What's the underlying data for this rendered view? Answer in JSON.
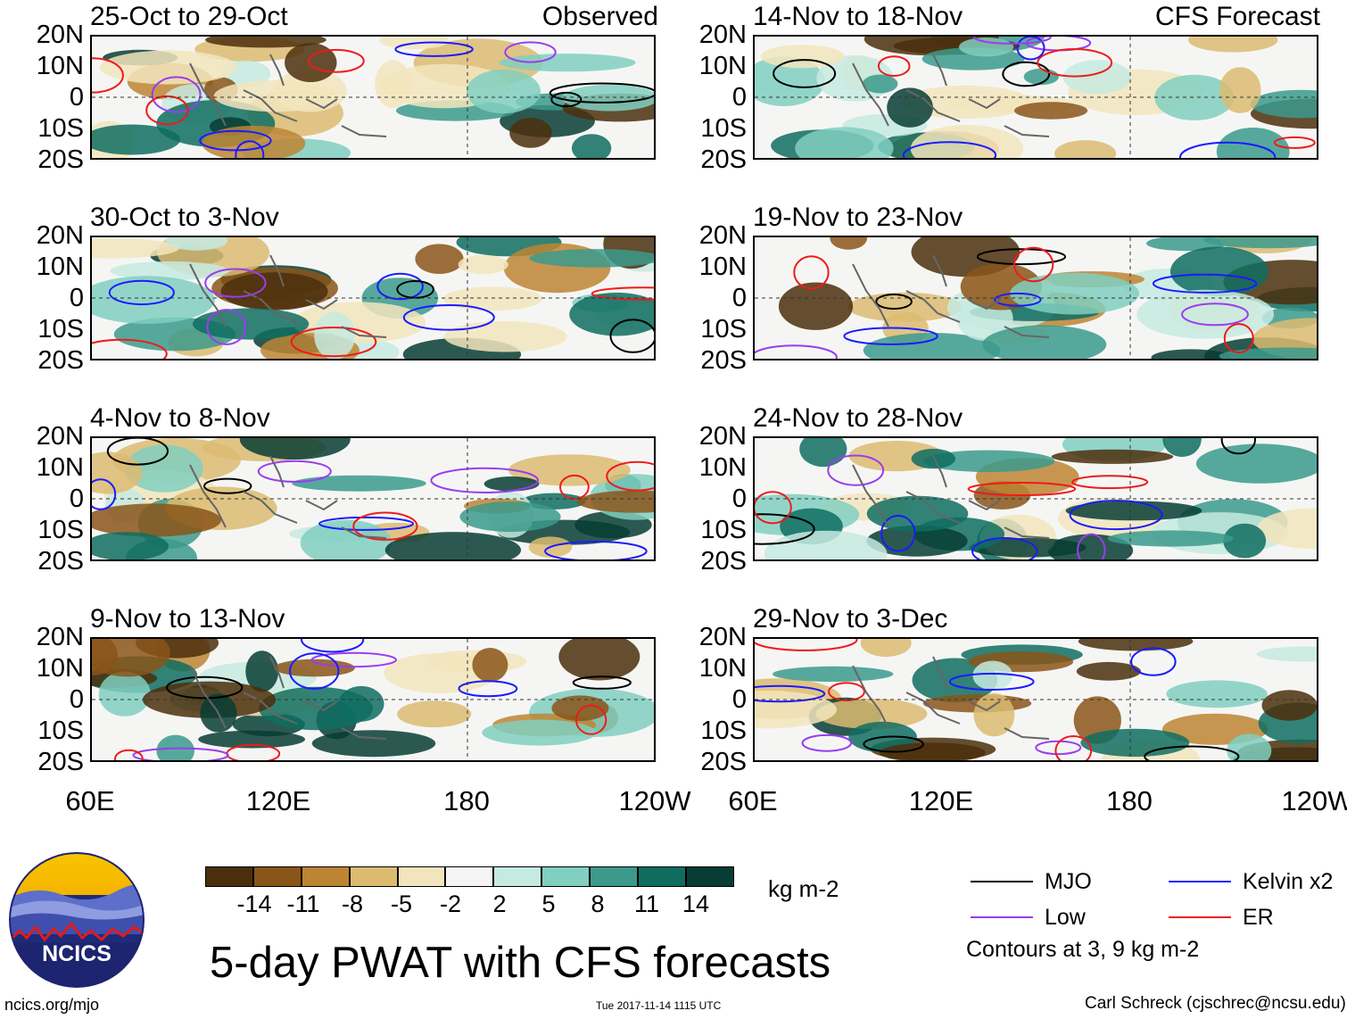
{
  "observed_label": "Observed",
  "forecast_label": "CFS Forecast",
  "observed_panels": [
    {
      "title": "25-Oct to 29-Oct"
    },
    {
      "title": "30-Oct to 3-Nov"
    },
    {
      "title": "4-Nov to 8-Nov"
    },
    {
      "title": "9-Nov to 13-Nov"
    }
  ],
  "forecast_panels": [
    {
      "title": "14-Nov to 18-Nov"
    },
    {
      "title": "19-Nov to 23-Nov"
    },
    {
      "title": "24-Nov to 28-Nov"
    },
    {
      "title": "29-Nov to 3-Dec"
    }
  ],
  "lat_labels": [
    "20N",
    "10N",
    "0",
    "10S",
    "20S"
  ],
  "lon_labels": [
    "60E",
    "120E",
    "180",
    "120W"
  ],
  "colorbar": {
    "colors": [
      "#4b2f0c",
      "#8a5519",
      "#bd8533",
      "#dcbb71",
      "#f2e5bd",
      "#f5f6f4",
      "#c5eae0",
      "#80cfc0",
      "#3b9a8c",
      "#0f6d60",
      "#073d34"
    ],
    "ticks": [
      "-14",
      "-11",
      "-8",
      "-5",
      "-2",
      "2",
      "5",
      "8",
      "11",
      "14"
    ],
    "units": "kg m-2"
  },
  "title": "5-day PWAT with CFS forecasts",
  "legend": [
    {
      "label": "MJO",
      "color": "#000000"
    },
    {
      "label": "Kelvin x2",
      "color": "#1b1bff"
    },
    {
      "label": "Low",
      "color": "#9a3cf0"
    },
    {
      "label": "ER",
      "color": "#f01a1a"
    }
  ],
  "contour_note": "Contours at 3, 9 kg m-2",
  "logo_text": "NCICS",
  "footer": {
    "left": "ncics.org/mjo",
    "middle": "Tue 2017-11-14 1115 UTC",
    "right": "Carl Schreck (cjschrec@ncsu.edu)"
  }
}
